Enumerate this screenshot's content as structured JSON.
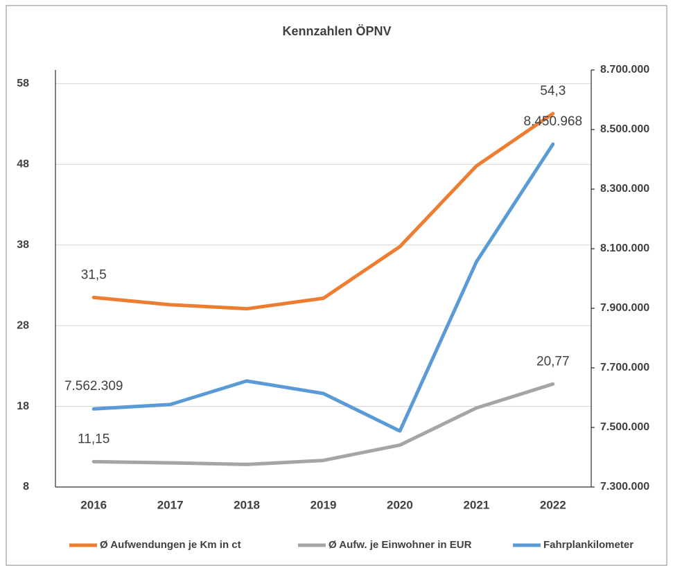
{
  "chart_data": {
    "type": "line",
    "title": "Kennzahlen ÖPNV",
    "categories": [
      "2016",
      "2017",
      "2018",
      "2019",
      "2020",
      "2021",
      "2022"
    ],
    "series": [
      {
        "name": "Ø Aufwendungen je Km in ct",
        "color": "#ed7d31",
        "axis": "y",
        "values": [
          31.5,
          30.6,
          30.1,
          31.4,
          37.8,
          47.8,
          54.3
        ],
        "value_labels": [
          "31,5",
          null,
          null,
          null,
          null,
          null,
          "54,3"
        ]
      },
      {
        "name": "Ø Aufw. je Einwohner in EUR",
        "color": "#a5a5a5",
        "axis": "y",
        "values": [
          11.15,
          11.0,
          10.8,
          11.3,
          13.2,
          17.8,
          20.77
        ],
        "value_labels": [
          "11,15",
          null,
          null,
          null,
          null,
          null,
          "20,77"
        ]
      },
      {
        "name": "Fahrplankilometer",
        "color": "#5b9bd5",
        "axis": "y2",
        "values": [
          7562309,
          7577000,
          7656000,
          7614000,
          7488000,
          8056000,
          8450968
        ],
        "value_labels": [
          "7.562.309",
          null,
          null,
          null,
          null,
          null,
          "8.450.968"
        ]
      }
    ],
    "ylim": [
      8,
      59.7
    ],
    "yticks": [
      8,
      18,
      28,
      38,
      48,
      58
    ],
    "y2lim": [
      7300000,
      8700000
    ],
    "y2ticks": [
      {
        "value": 7300000,
        "label": "7.300.000"
      },
      {
        "value": 7500000,
        "label": "7.500.000"
      },
      {
        "value": 7700000,
        "label": "7.700.000"
      },
      {
        "value": 7900000,
        "label": "7.900.000"
      },
      {
        "value": 8100000,
        "label": "8.100.000"
      },
      {
        "value": 8300000,
        "label": "8.300.000"
      },
      {
        "value": 8500000,
        "label": "8.500.000"
      },
      {
        "value": 8700000,
        "label": "8.700.000"
      }
    ],
    "grid": true,
    "legend": "bottom"
  }
}
